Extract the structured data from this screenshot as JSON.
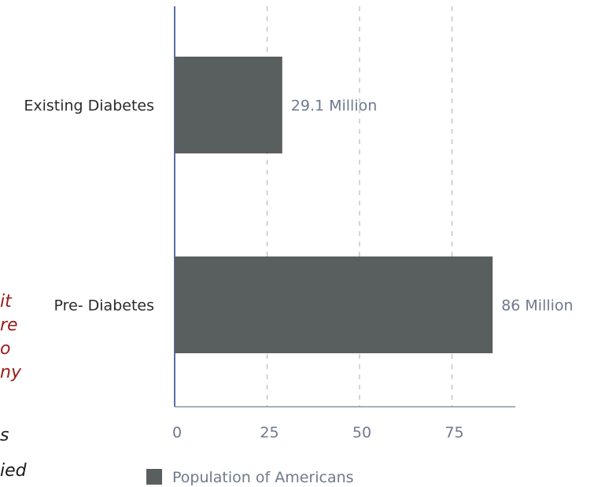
{
  "chart_data": {
    "type": "bar",
    "orientation": "horizontal",
    "categories": [
      "Existing Diabetes",
      "Pre- Diabetes"
    ],
    "series": [
      {
        "name": "Population of Americans",
        "values": [
          29.1,
          86
        ],
        "data_labels": [
          "29.1 Million",
          "86 Million"
        ],
        "color": "#595f5e"
      }
    ],
    "x_ticks": [
      0,
      25,
      50,
      75
    ],
    "xlim": [
      0,
      90
    ],
    "grid": "vertical dashed",
    "legend": "bottom"
  },
  "cropped_margin_text": {
    "lines": [
      "it",
      "re",
      "o",
      "ny",
      "",
      "s",
      "ied"
    ],
    "colors": [
      "#9b1b1b",
      "#9b1b1b",
      "#9b1b1b",
      "#9b1b1b",
      "#9b1b1b",
      "#1a1a1a",
      "#1a1a1a"
    ]
  }
}
